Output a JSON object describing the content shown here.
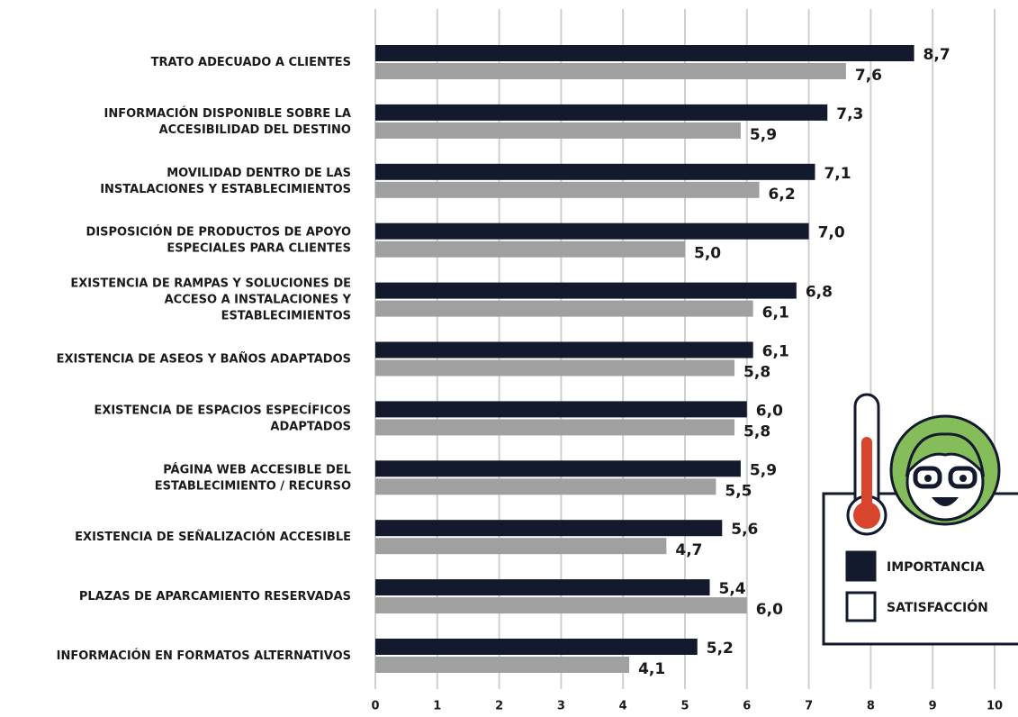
{
  "chart_data": {
    "type": "bar",
    "orientation": "horizontal",
    "categories": [
      "TRATO ADECUADO A CLIENTES",
      "INFORMACIÓN DISPONIBLE SOBRE LA\nACCESIBILIDAD DEL DESTINO",
      "MOVILIDAD DENTRO DE LAS\nINSTALACIONES Y ESTABLECIMIENTOS",
      "DISPOSICIÓN DE PRODUCTOS DE APOYO\nESPECIALES PARA CLIENTES",
      "EXISTENCIA DE RAMPAS Y SOLUCIONES DE\nACCESO A INSTALACIONES Y\nESTABLECIMIENTOS",
      "EXISTENCIA DE ASEOS Y BAÑOS ADAPTADOS",
      "EXISTENCIA DE ESPACIOS ESPECÍFICOS\nADAPTADOS",
      "PÁGINA WEB ACCESIBLE DEL\nESTABLECIMIENTO / RECURSO",
      "EXISTENCIA DE SEÑALIZACIÓN ACCESIBLE",
      "PLAZAS DE APARCAMIENTO RESERVADAS",
      "INFORMACIÓN EN FORMATOS ALTERNATIVOS"
    ],
    "series": [
      {
        "name": "IMPORTANCIA",
        "color": "#141a2e",
        "values": [
          8.7,
          7.3,
          7.1,
          7.0,
          6.8,
          6.1,
          6.0,
          5.9,
          5.6,
          5.4,
          5.2
        ],
        "value_labels": [
          "8,7",
          "7,3",
          "7,1",
          "7,0",
          "6,8",
          "6,1",
          "6,0",
          "5,9",
          "5,6",
          "5,4",
          "5,2"
        ]
      },
      {
        "name": "SATISFACCIÓN",
        "color": "#a0a0a0",
        "values": [
          7.6,
          5.9,
          6.2,
          5.0,
          6.1,
          5.8,
          5.8,
          5.5,
          4.7,
          6.0,
          4.1
        ],
        "value_labels": [
          "7,6",
          "5,9",
          "6,2",
          "5,0",
          "6,1",
          "5,8",
          "5,8",
          "5,5",
          "4,7",
          "6,0",
          "4,1"
        ]
      }
    ],
    "xlim": [
      0,
      10
    ],
    "xticks": [
      0,
      1,
      2,
      3,
      4,
      5,
      6,
      7,
      8,
      9,
      10
    ],
    "grid": true
  }
}
